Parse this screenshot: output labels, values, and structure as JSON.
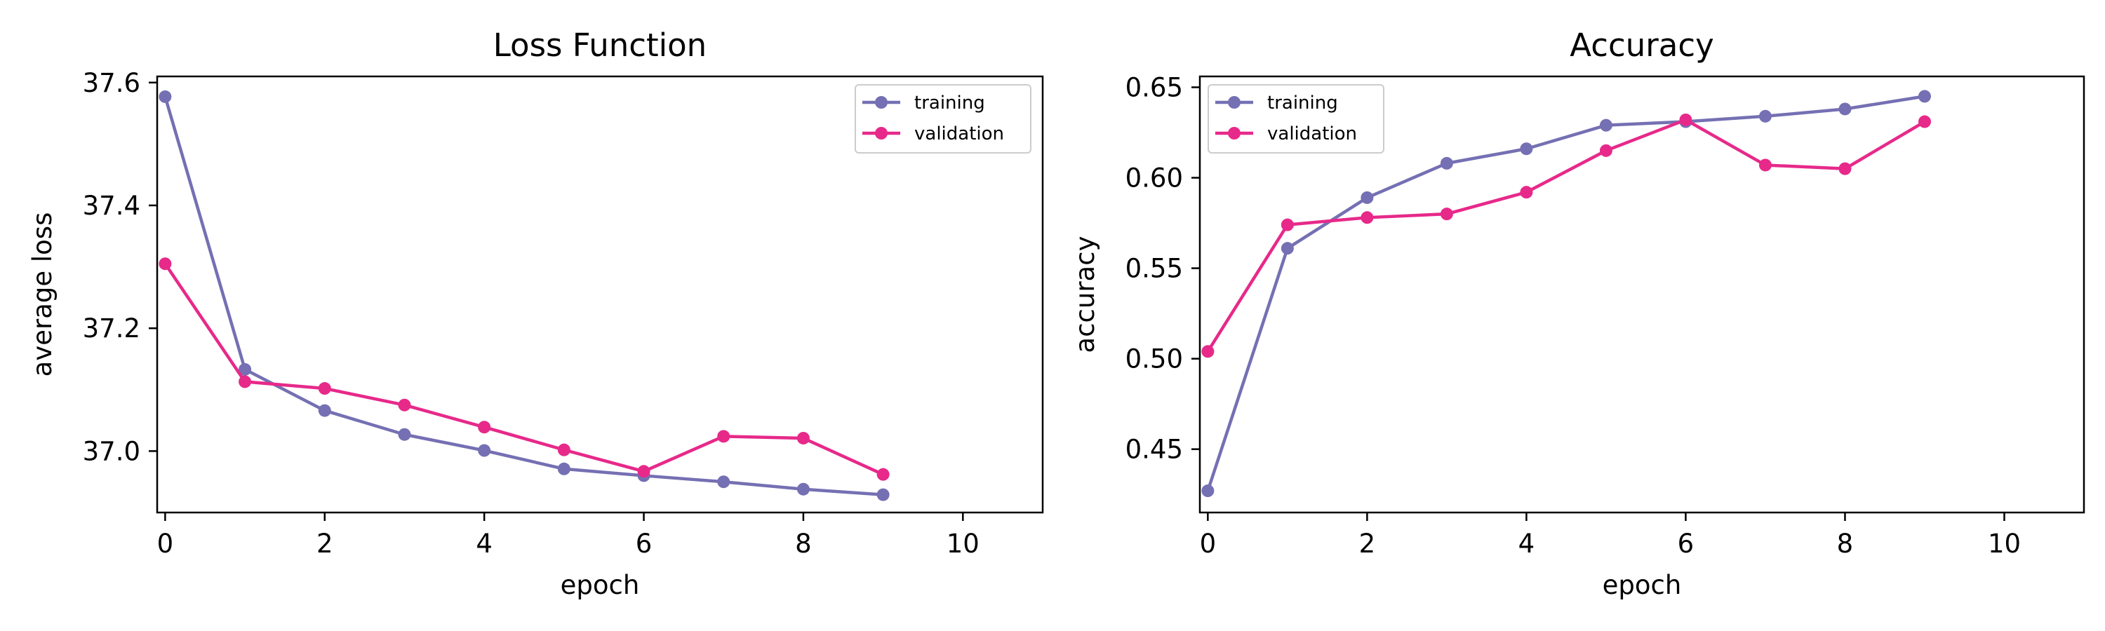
{
  "chart_data": [
    {
      "type": "line",
      "title": "Loss Function",
      "xlabel": "epoch",
      "ylabel": "average loss",
      "xlim": [
        -0.1,
        11
      ],
      "ylim": [
        36.9,
        37.61
      ],
      "xticks": [
        0,
        2,
        4,
        6,
        8,
        10
      ],
      "xtick_labels": [
        "0",
        "2",
        "4",
        "6",
        "8",
        "10"
      ],
      "yticks": [
        37.0,
        37.2,
        37.4,
        37.6
      ],
      "ytick_labels": [
        "37.0",
        "37.2",
        "37.4",
        "37.6"
      ],
      "x": [
        0,
        1,
        2,
        3,
        4,
        5,
        6,
        7,
        8,
        9
      ],
      "legend_position": "top-right",
      "grid": false,
      "series": [
        {
          "name": "training",
          "color": "#7570b3",
          "values": [
            37.577,
            37.133,
            37.066,
            37.027,
            37.001,
            36.971,
            36.96,
            36.95,
            36.938,
            36.929
          ]
        },
        {
          "name": "validation",
          "color": "#e7298a",
          "values": [
            37.305,
            37.113,
            37.102,
            37.075,
            37.039,
            37.002,
            36.967,
            37.024,
            37.021,
            36.962
          ]
        }
      ]
    },
    {
      "type": "line",
      "title": "Accuracy",
      "xlabel": "epoch",
      "ylabel": "accuracy",
      "xlim": [
        -0.1,
        11
      ],
      "ylim": [
        0.415,
        0.656
      ],
      "xticks": [
        0,
        2,
        4,
        6,
        8,
        10
      ],
      "xtick_labels": [
        "0",
        "2",
        "4",
        "6",
        "8",
        "10"
      ],
      "yticks": [
        0.45,
        0.5,
        0.55,
        0.6,
        0.65
      ],
      "ytick_labels": [
        "0.45",
        "0.50",
        "0.55",
        "0.60",
        "0.65"
      ],
      "x": [
        0,
        1,
        2,
        3,
        4,
        5,
        6,
        7,
        8,
        9
      ],
      "legend_position": "top-left",
      "grid": false,
      "series": [
        {
          "name": "training",
          "color": "#7570b3",
          "values": [
            0.427,
            0.561,
            0.589,
            0.608,
            0.616,
            0.629,
            0.631,
            0.634,
            0.638,
            0.645
          ]
        },
        {
          "name": "validation",
          "color": "#e7298a",
          "values": [
            0.504,
            0.574,
            0.578,
            0.58,
            0.592,
            0.615,
            0.632,
            0.607,
            0.605,
            0.631
          ]
        }
      ]
    }
  ]
}
